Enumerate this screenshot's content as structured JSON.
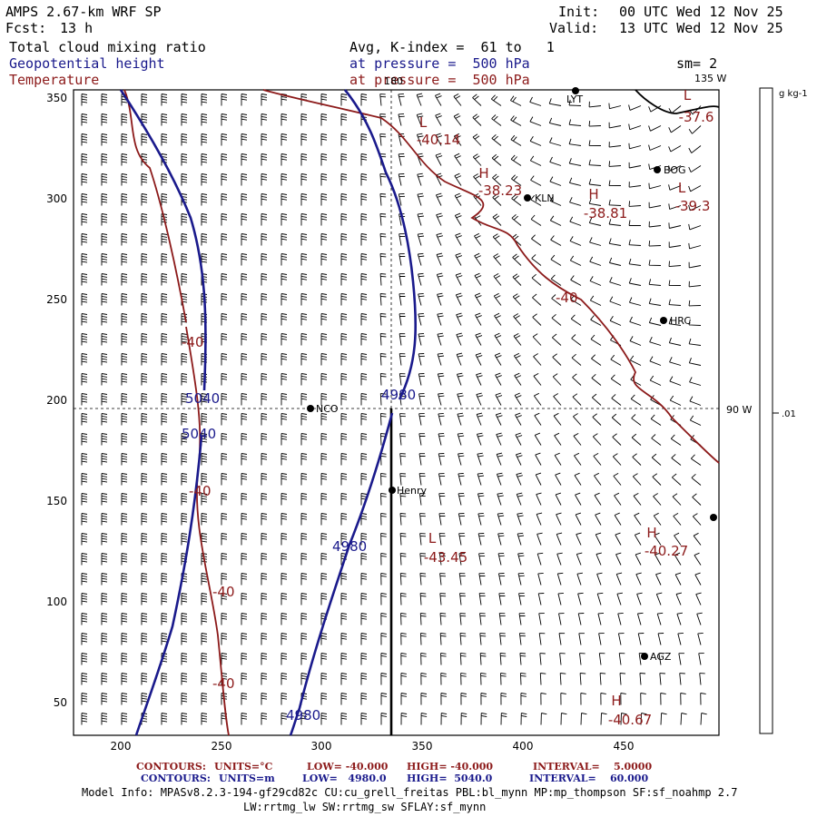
{
  "header": {
    "model": "AMPS 2.67-km WRF SP",
    "fcst_label": "Fcst:",
    "fcst_value": "13 h",
    "init_label": "Init:",
    "init_value": "00 UTC Wed 12 Nov 25",
    "valid_label": "Valid:",
    "valid_value": "13 UTC Wed 12 Nov 25",
    "field1": "Total cloud mixing ratio",
    "field2": "Geopotential height",
    "field3": "Temperature",
    "avg_text": "Avg, K-index =  61 to   1",
    "pressure1": "at pressure =  500 hPa",
    "pressure2": "at pressure =  500 hPa",
    "sm": "sm= 2"
  },
  "map": {
    "x_ticks": [
      "200",
      "250",
      "300",
      "350",
      "400",
      "450"
    ],
    "y_ticks": [
      "350",
      "300",
      "250",
      "200",
      "150",
      "100",
      "50"
    ],
    "lon_labels": [
      "180",
      "135 W",
      "90 W"
    ],
    "stations": [
      "LYT",
      "BOG",
      "KLN",
      "HRC",
      "NCO",
      "Henry",
      "AGZ"
    ],
    "height_labels": [
      "5040",
      "5040",
      "4980",
      "4980",
      "4980"
    ],
    "temp_labels": [
      "-40",
      "-40",
      "-40",
      "-40",
      "-40"
    ],
    "extrema": [
      {
        "letter": "L",
        "value": "-40.14"
      },
      {
        "letter": "H",
        "value": "-38.23"
      },
      {
        "letter": "H",
        "value": "-38.81"
      },
      {
        "letter": "L",
        "value": "-39.3"
      },
      {
        "letter": "L",
        "value": "-37.6"
      },
      {
        "letter": "L",
        "value": "-43.45"
      },
      {
        "letter": "H",
        "value": "-40.27"
      },
      {
        "letter": "H",
        "value": "-40.67"
      }
    ]
  },
  "colorbar": {
    "unit": "g kg-1",
    "tick": ".01"
  },
  "footer": {
    "row1_label": "CONTOURS:",
    "row1_units": "UNITS=°C",
    "row1_low": "LOW= -40.000",
    "row1_high": "HIGH= -40.000",
    "row1_interval": "INTERVAL=    5.0000",
    "row2_label": "CONTOURS:",
    "row2_units": "UNITS=m",
    "row2_low": "LOW=   4980.0",
    "row2_high": "HIGH=  5040.0",
    "row2_interval": "INTERVAL=    60.000",
    "info1": "Model Info: MPASv8.2.3-194-gf29cd82c CU:cu_grell_freitas PBL:bl_mynn MP:mp_thompson SF:sf_noahmp 2.7",
    "info2": "LW:rrtmg_lw SW:rrtmg_sw SFLAY:sf_mynn"
  },
  "colors": {
    "height": "#1a1a8c",
    "temperature": "#8c1a1a",
    "wind": "#000000"
  }
}
